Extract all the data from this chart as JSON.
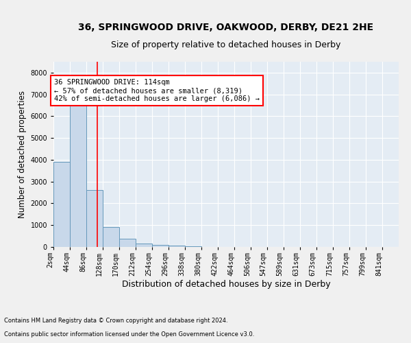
{
  "title": "36, SPRINGWOOD DRIVE, OAKWOOD, DERBY, DE21 2HE",
  "subtitle": "Size of property relative to detached houses in Derby",
  "xlabel": "Distribution of detached houses by size in Derby",
  "ylabel": "Number of detached properties",
  "bin_labels": [
    "2sqm",
    "44sqm",
    "86sqm",
    "128sqm",
    "170sqm",
    "212sqm",
    "254sqm",
    "296sqm",
    "338sqm",
    "380sqm",
    "422sqm",
    "464sqm",
    "506sqm",
    "547sqm",
    "589sqm",
    "631sqm",
    "673sqm",
    "715sqm",
    "757sqm",
    "799sqm",
    "841sqm"
  ],
  "bin_left_edges": [
    2,
    44,
    86,
    128,
    170,
    212,
    254,
    296,
    338,
    380,
    422,
    464,
    506,
    547,
    589,
    631,
    673,
    715,
    757,
    799,
    841
  ],
  "bar_values": [
    3900,
    6500,
    2600,
    900,
    380,
    150,
    100,
    50,
    30,
    10,
    0,
    0,
    0,
    0,
    0,
    0,
    0,
    0,
    0,
    0
  ],
  "bar_color": "#c8d8ea",
  "bar_edge_color": "#6699bb",
  "ylim": [
    0,
    8500
  ],
  "yticks": [
    0,
    1000,
    2000,
    3000,
    4000,
    5000,
    6000,
    7000,
    8000
  ],
  "red_line_x": 114,
  "annotation_title": "36 SPRINGWOOD DRIVE: 114sqm",
  "annotation_line1": "← 57% of detached houses are smaller (8,319)",
  "annotation_line2": "42% of semi-detached houses are larger (6,086) →",
  "footer_line1": "Contains HM Land Registry data © Crown copyright and database right 2024.",
  "footer_line2": "Contains public sector information licensed under the Open Government Licence v3.0.",
  "plot_bg_color": "#e4ecf4",
  "fig_bg_color": "#f0f0f0",
  "grid_color": "#ffffff",
  "title_fontsize": 10,
  "subtitle_fontsize": 9,
  "axis_label_fontsize": 8.5,
  "tick_fontsize": 7,
  "annotation_fontsize": 7.5,
  "footer_fontsize": 6
}
